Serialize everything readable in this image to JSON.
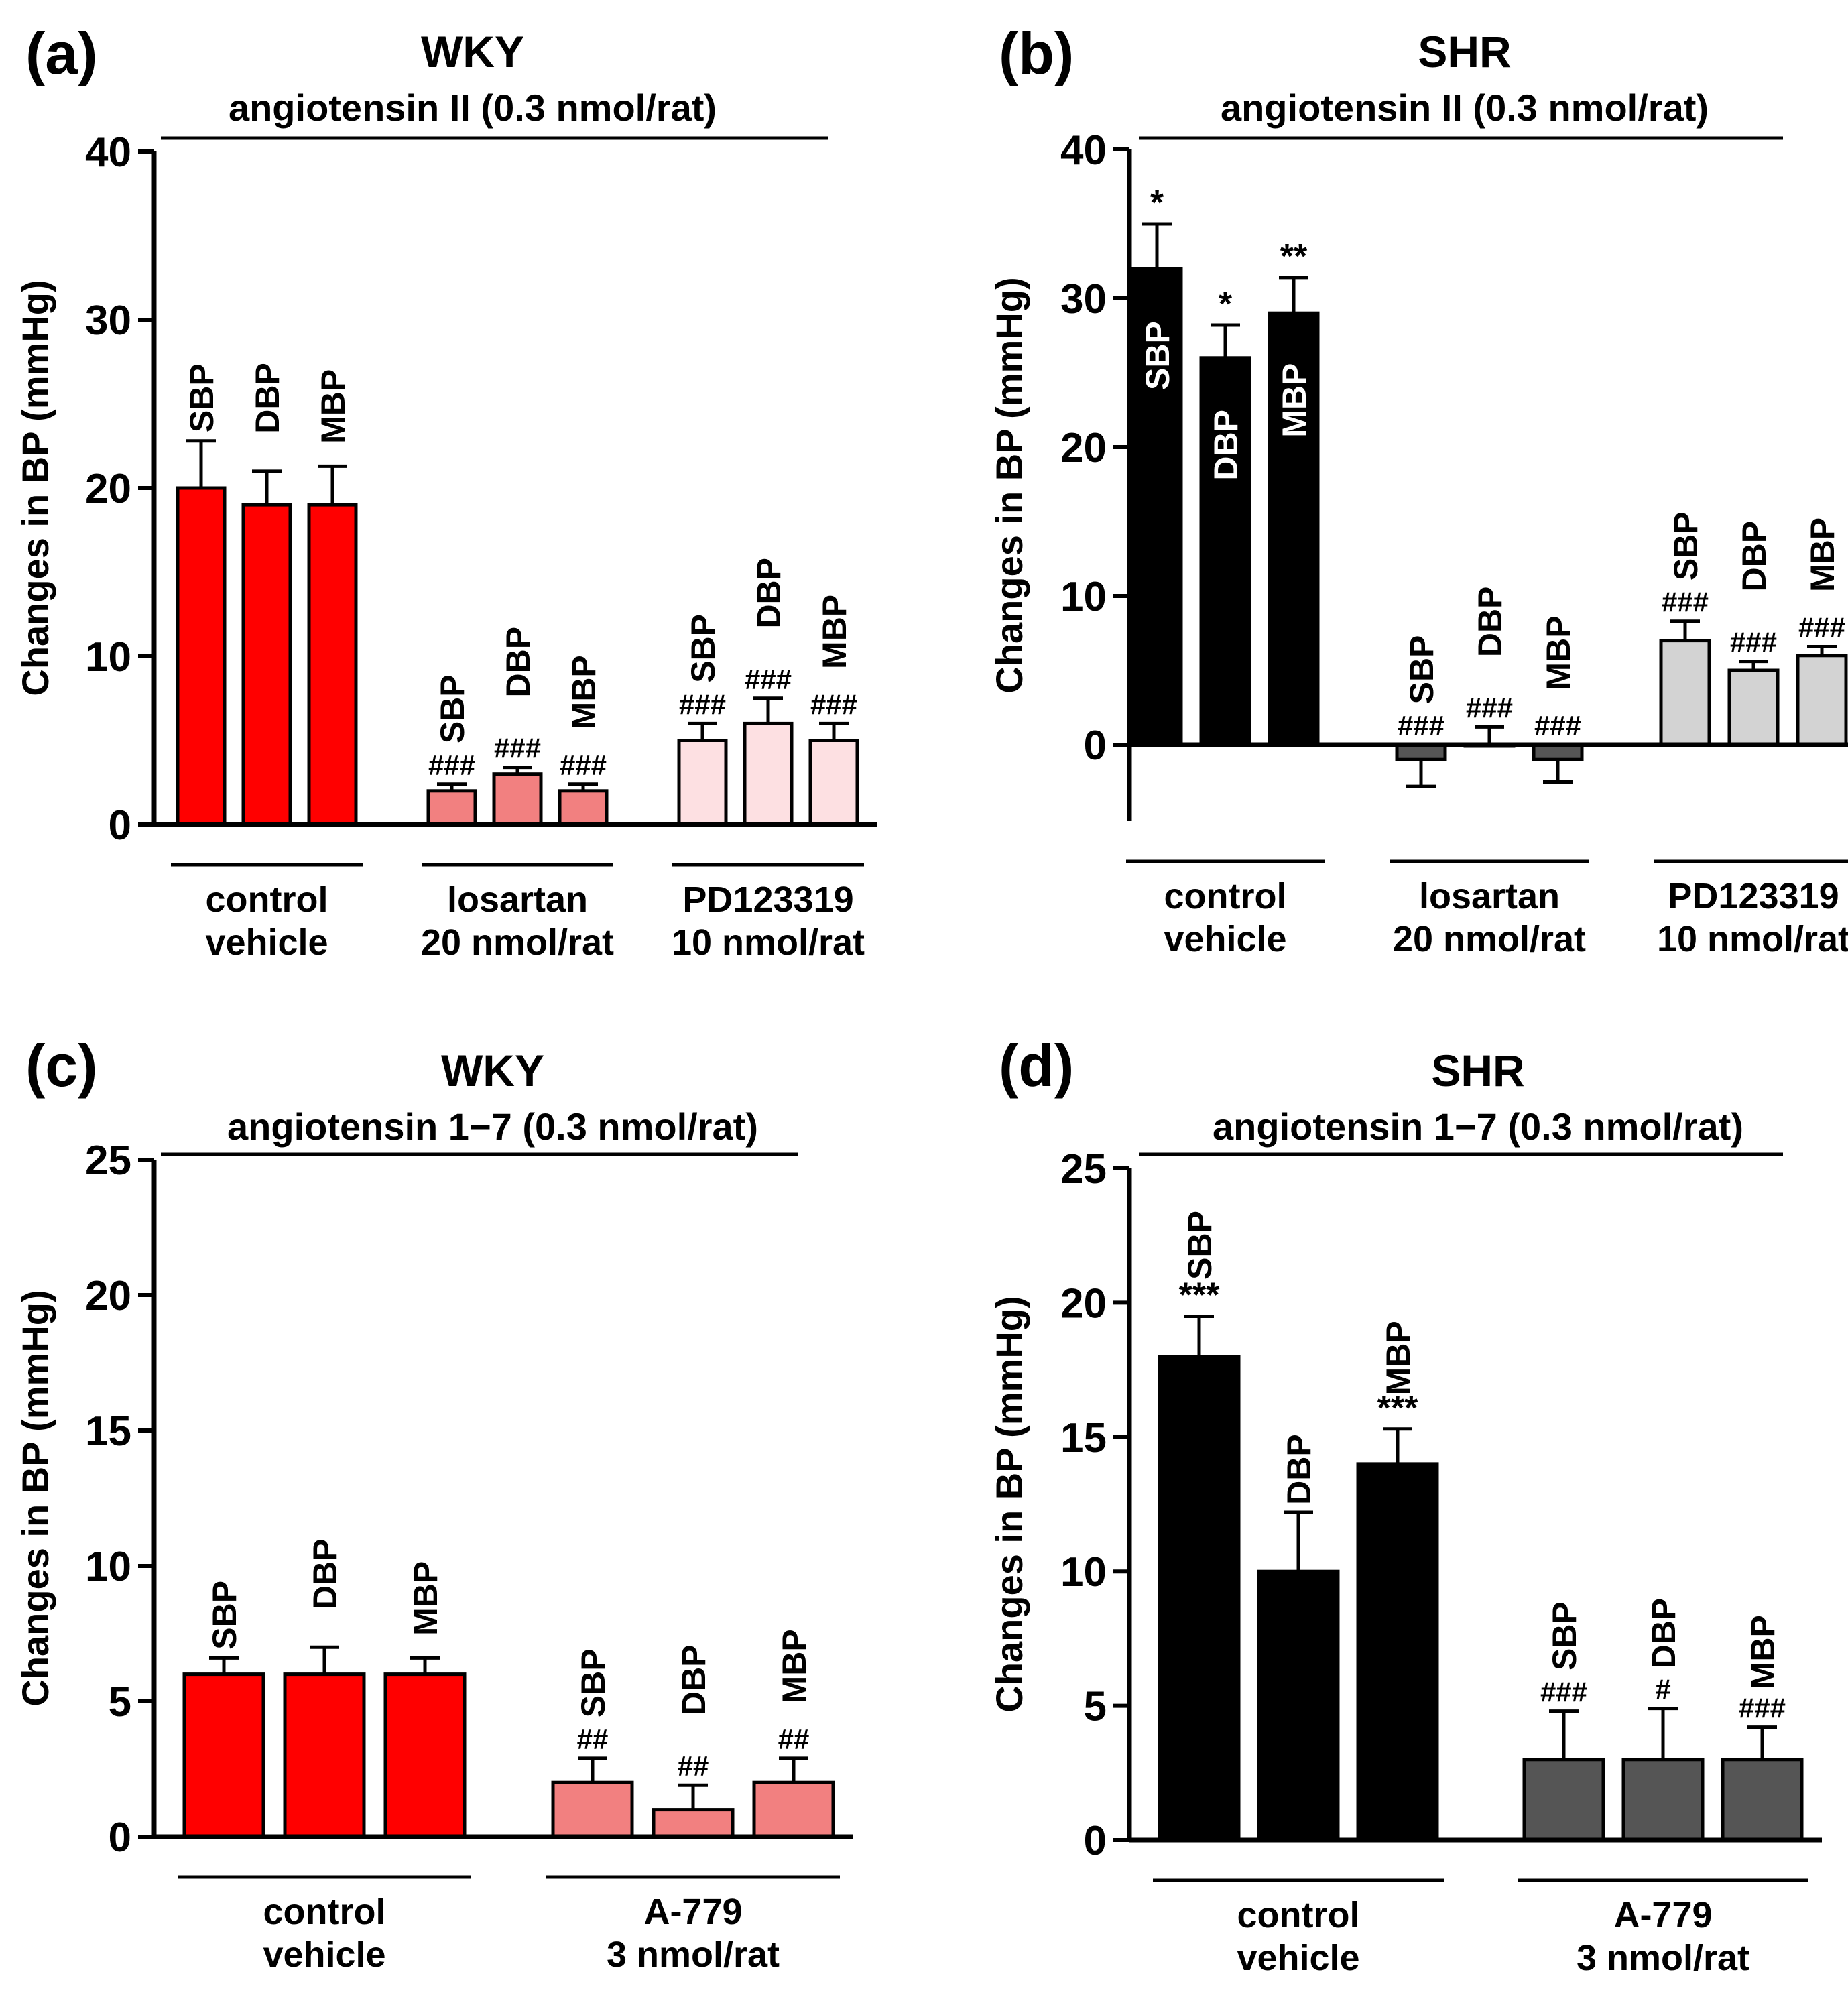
{
  "colors": {
    "red": "#ff0000",
    "salmon": "#f28080",
    "pink": "#fde0e2",
    "black": "#000000",
    "dark_grey": "#555555",
    "light_grey": "#d3d3d3"
  },
  "chart_data": [
    {
      "type": "bar",
      "panel_label": "(a)",
      "title": "WKY",
      "subtitle": "angiotensin II (0.3 nmol/rat)",
      "xlabel": "",
      "ylabel": "Changes in BP (mmHg)",
      "ylim": [
        0,
        40
      ],
      "yticks": [
        "0",
        "10",
        "20",
        "30",
        "40"
      ],
      "grid": false,
      "groups": [
        {
          "label_lines": [
            "control",
            "vehicle"
          ],
          "color": "#ff0000",
          "bars": [
            {
              "name": "SBP",
              "value": 20,
              "error": 2.8,
              "sig": ""
            },
            {
              "name": "DBP",
              "value": 19,
              "error": 2.0,
              "sig": ""
            },
            {
              "name": "MBP",
              "value": 19,
              "error": 2.3,
              "sig": ""
            }
          ]
        },
        {
          "label_lines": [
            "losartan",
            "20 nmol/rat"
          ],
          "color": "#f28080",
          "bars": [
            {
              "name": "SBP",
              "value": 2,
              "error": 0.4,
              "sig": "###"
            },
            {
              "name": "DBP",
              "value": 3,
              "error": 0.4,
              "sig": "###"
            },
            {
              "name": "MBP",
              "value": 2,
              "error": 0.4,
              "sig": "###"
            }
          ]
        },
        {
          "label_lines": [
            "PD123319",
            "10 nmol/rat"
          ],
          "color": "#fde0e2",
          "bars": [
            {
              "name": "SBP",
              "value": 5,
              "error": 1.0,
              "sig": "###"
            },
            {
              "name": "DBP",
              "value": 6,
              "error": 1.5,
              "sig": "###"
            },
            {
              "name": "MBP",
              "value": 5,
              "error": 1.0,
              "sig": "###"
            }
          ]
        }
      ]
    },
    {
      "type": "bar",
      "panel_label": "(b)",
      "title": "SHR",
      "subtitle": "angiotensin II (0.3 nmol/rat)",
      "xlabel": "",
      "ylabel": "Changes in BP (mmHg)",
      "ylim": [
        -5,
        40
      ],
      "yticks": [
        "0",
        "10",
        "20",
        "30",
        "40"
      ],
      "grid": false,
      "groups": [
        {
          "label_lines": [
            "control",
            "vehicle"
          ],
          "color": "#000000",
          "bars": [
            {
              "name": "SBP",
              "value": 32,
              "error": 3.0,
              "sig": "*"
            },
            {
              "name": "DBP",
              "value": 26,
              "error": 2.2,
              "sig": "*"
            },
            {
              "name": "MBP",
              "value": 29,
              "error": 2.4,
              "sig": "**"
            }
          ]
        },
        {
          "label_lines": [
            "losartan",
            "20 nmol/rat"
          ],
          "color": "#555555",
          "bars": [
            {
              "name": "SBP",
              "value": -1,
              "error": 1.8,
              "sig": "###"
            },
            {
              "name": "DBP",
              "value": 0,
              "error": 1.2,
              "sig": "###"
            },
            {
              "name": "MBP",
              "value": -1,
              "error": 1.5,
              "sig": "###"
            }
          ]
        },
        {
          "label_lines": [
            "PD123319",
            "10 nmol/rat"
          ],
          "color": "#d3d3d3",
          "bars": [
            {
              "name": "SBP",
              "value": 7,
              "error": 1.3,
              "sig": "###"
            },
            {
              "name": "DBP",
              "value": 5,
              "error": 0.6,
              "sig": "###"
            },
            {
              "name": "MBP",
              "value": 6,
              "error": 0.6,
              "sig": "###"
            }
          ]
        }
      ]
    },
    {
      "type": "bar",
      "panel_label": "(c)",
      "title": "WKY",
      "subtitle": "angiotensin 1−7 (0.3 nmol/rat)",
      "xlabel": "",
      "ylabel": "Changes in BP (mmHg)",
      "ylim": [
        0,
        25
      ],
      "yticks": [
        "0",
        "5",
        "10",
        "15",
        "20",
        "25"
      ],
      "grid": false,
      "groups": [
        {
          "label_lines": [
            "control",
            "vehicle"
          ],
          "color": "#ff0000",
          "bars": [
            {
              "name": "SBP",
              "value": 6,
              "error": 0.6,
              "sig": ""
            },
            {
              "name": "DBP",
              "value": 6,
              "error": 1.0,
              "sig": ""
            },
            {
              "name": "MBP",
              "value": 6,
              "error": 0.6,
              "sig": ""
            }
          ]
        },
        {
          "label_lines": [
            "A-779",
            "3 nmol/rat"
          ],
          "color": "#f28080",
          "bars": [
            {
              "name": "SBP",
              "value": 2,
              "error": 0.9,
              "sig": "##"
            },
            {
              "name": "DBP",
              "value": 1,
              "error": 0.9,
              "sig": "##"
            },
            {
              "name": "MBP",
              "value": 2,
              "error": 0.9,
              "sig": "##"
            }
          ]
        }
      ]
    },
    {
      "type": "bar",
      "panel_label": "(d)",
      "title": "SHR",
      "subtitle": "angiotensin 1−7 (0.3 nmol/rat)",
      "xlabel": "",
      "ylabel": "Changes in BP (mmHg)",
      "ylim": [
        0,
        25
      ],
      "yticks": [
        "0",
        "5",
        "10",
        "15",
        "20",
        "25"
      ],
      "grid": false,
      "groups": [
        {
          "label_lines": [
            "control",
            "vehicle"
          ],
          "color": "#000000",
          "bars": [
            {
              "name": "SBP",
              "value": 18,
              "error": 1.5,
              "sig": "***"
            },
            {
              "name": "DBP",
              "value": 10,
              "error": 2.2,
              "sig": ""
            },
            {
              "name": "MBP",
              "value": 14,
              "error": 1.3,
              "sig": "***"
            }
          ]
        },
        {
          "label_lines": [
            "A-779",
            "3 nmol/rat"
          ],
          "color": "#555555",
          "bars": [
            {
              "name": "SBP",
              "value": 3,
              "error": 1.8,
              "sig": "###"
            },
            {
              "name": "DBP",
              "value": 3,
              "error": 1.9,
              "sig": "#"
            },
            {
              "name": "MBP",
              "value": 3,
              "error": 1.2,
              "sig": "###"
            }
          ]
        }
      ]
    }
  ]
}
